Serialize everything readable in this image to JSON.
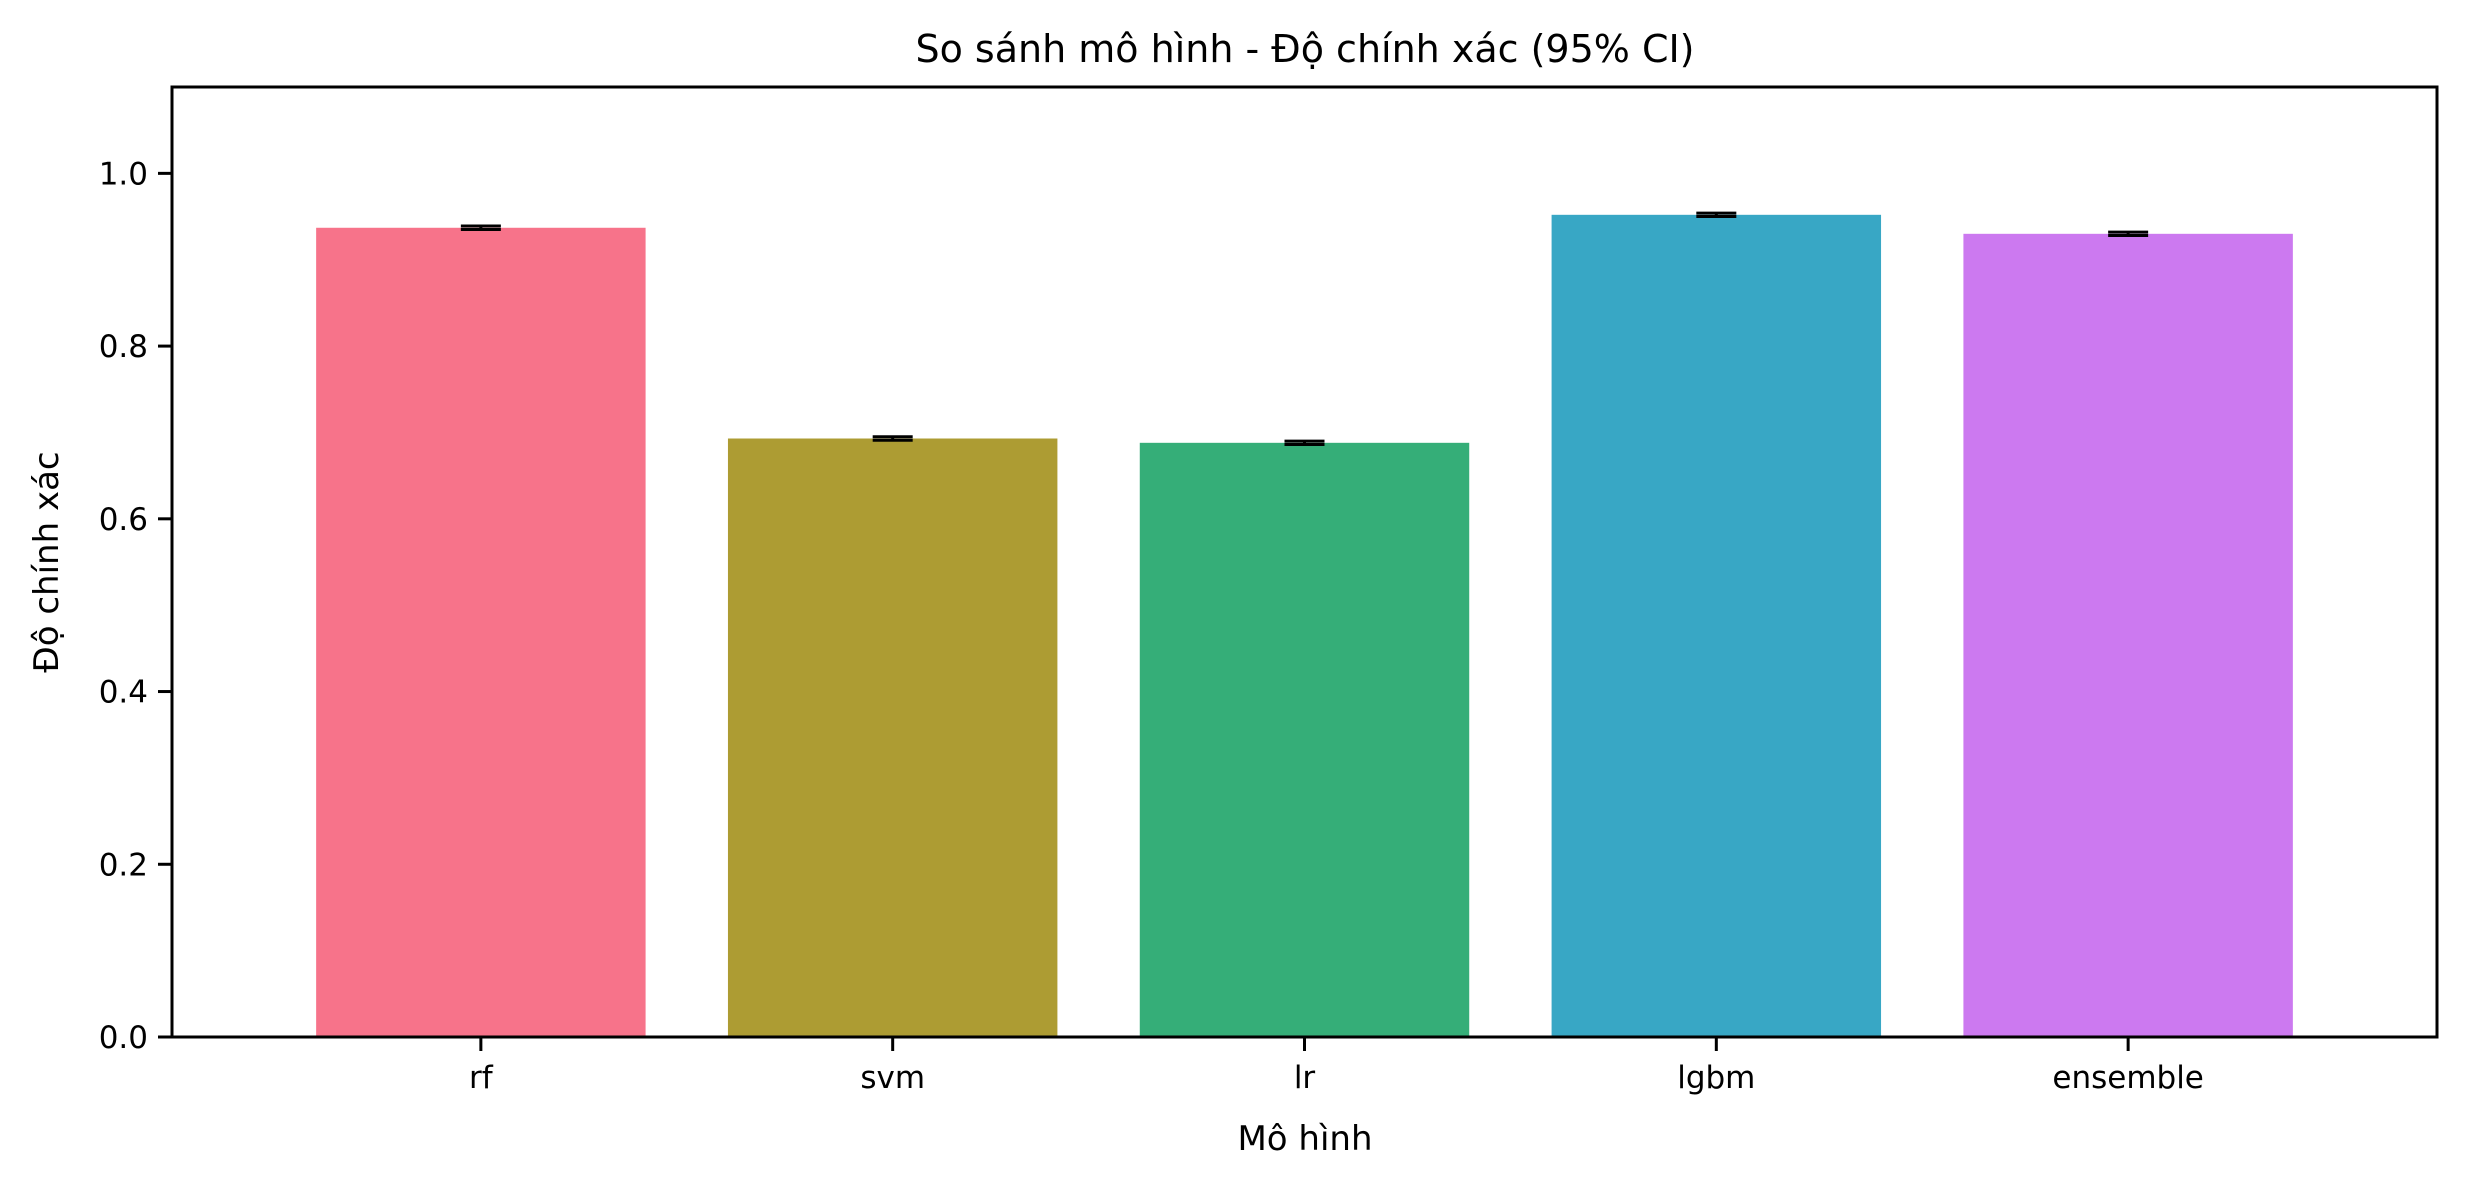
{
  "chart_data": {
    "type": "bar",
    "title": "So sánh mô hình - Độ chính xác (95% CI)",
    "xlabel": "Mô hình",
    "ylabel": "Độ chính xác",
    "categories": [
      "rf",
      "svm",
      "lr",
      "lgbm",
      "ensemble"
    ],
    "values": [
      0.937,
      0.693,
      0.688,
      0.952,
      0.93
    ],
    "error": [
      0.002,
      0.002,
      0.002,
      0.002,
      0.002
    ],
    "colors": [
      "#f7738a",
      "#ad9c33",
      "#35ae78",
      "#38a7c5",
      "#cc79f0"
    ],
    "ylim": [
      0,
      1.1
    ],
    "yticks": [
      0.0,
      0.2,
      0.4,
      0.6,
      0.8,
      1.0
    ],
    "ytick_labels": [
      "0.0",
      "0.2",
      "0.4",
      "0.6",
      "0.8",
      "1.0"
    ],
    "grid": false,
    "legend": "none"
  }
}
